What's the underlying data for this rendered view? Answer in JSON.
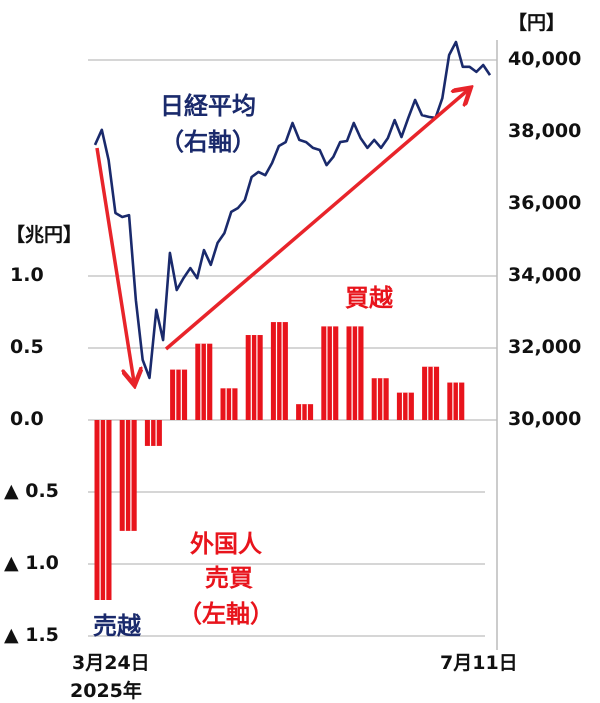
{
  "chart_data": {
    "type": "bar+line",
    "left_axis": {
      "unit": "【兆円】",
      "range": [
        -1.5,
        1.25
      ],
      "ticks": [
        1.0,
        0.5,
        0.0,
        -0.5,
        -1.0,
        -1.5
      ],
      "tick_labels": [
        "1.0",
        "0.5",
        "0.0",
        "▲ 0.5",
        "▲ 1.0",
        "▲ 1.5"
      ]
    },
    "right_axis": {
      "unit": "【円】",
      "range": [
        30000,
        41000
      ],
      "ticks": [
        40000,
        38000,
        36000,
        34000,
        32000,
        30000
      ],
      "tick_labels": [
        "40,000",
        "38,000",
        "36,000",
        "34,000",
        "32,000",
        "30,000"
      ]
    },
    "x_labels": {
      "start": "3月24日",
      "start_year": "2025年",
      "end": "7月11日"
    },
    "grid": true,
    "bar_series": {
      "name": "外国人売買（左軸）",
      "color": "#e8141c",
      "values": [
        -1.25,
        -0.77,
        -0.18,
        0.35,
        0.53,
        0.22,
        0.59,
        0.68,
        0.11,
        0.65,
        0.65,
        0.29,
        0.19,
        0.37,
        0.26
      ]
    },
    "line_series": {
      "name": "日経平均（右軸）",
      "color": "#1a2a6c",
      "values": [
        37640,
        38060,
        37220,
        35750,
        35640,
        35690,
        33330,
        31670,
        31170,
        33060,
        32220,
        34640,
        33610,
        33940,
        34220,
        33940,
        34720,
        34310,
        34920,
        35190,
        35780,
        35890,
        36110,
        36750,
        36890,
        36800,
        37140,
        37610,
        37720,
        38250,
        37780,
        37720,
        37560,
        37500,
        37080,
        37310,
        37720,
        37750,
        38250,
        37830,
        37560,
        37780,
        37560,
        37830,
        38330,
        37860,
        38390,
        38890,
        38470,
        38420,
        38390,
        38940,
        40140,
        40500,
        39810,
        39810,
        39670,
        39860,
        39580
      ]
    },
    "annotations": {
      "nikkei_line1": "日経平均",
      "nikkei_line2": "（右軸）",
      "buy": "買越",
      "sell": "売越",
      "foreign_line1": "外国人",
      "foreign_line2": "売買",
      "foreign_line3": "（左軸）"
    },
    "arrow_color": "#e8242a"
  }
}
